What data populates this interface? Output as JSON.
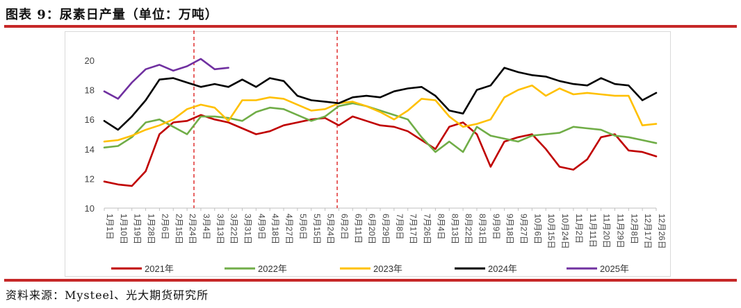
{
  "title": "图表 9：尿素日产量（单位：万吨）",
  "source": "资料来源：Mysteel、光大期货研究所",
  "chart_data": {
    "type": "line",
    "ylim": [
      10,
      20
    ],
    "yticks": [
      10,
      12,
      14,
      16,
      18,
      20
    ],
    "x_tick_labels": [
      "1月1日",
      "1月10日",
      "1月19日",
      "1月28日",
      "2月6日",
      "2月15日",
      "2月24日",
      "3月4日",
      "3月13日",
      "3月22日",
      "3月31日",
      "4月9日",
      "4月18日",
      "4月27日",
      "5月6日",
      "5月15日",
      "5月24日",
      "6月2日",
      "6月11日",
      "6月20日",
      "6月29日",
      "7月8日",
      "7月17日",
      "7月26日",
      "8月4日",
      "8月13日",
      "8月22日",
      "8月31日",
      "9月9日",
      "9月18日",
      "9月27日",
      "10月6日",
      "10月15日",
      "10月24日",
      "11月2日",
      "11月11日",
      "11月20日",
      "11月29日",
      "12月8日",
      "12月17日",
      "12月26日"
    ],
    "vlines": [
      "3月1日",
      "6月1日"
    ],
    "grid": false,
    "legend_position": "bottom",
    "series": [
      {
        "name": "2021年",
        "color": "#c00000",
        "x": [
          "1月1日",
          "1月10日",
          "1月19日",
          "1月28日",
          "2月6日",
          "2月15日",
          "2月24日",
          "3月4日",
          "3月13日",
          "3月22日",
          "3月31日",
          "4月9日",
          "4月18日",
          "4月27日",
          "5月6日",
          "5月15日",
          "5月24日",
          "6月2日",
          "6月11日",
          "6月20日",
          "6月29日",
          "7月8日",
          "7月17日",
          "7月26日",
          "8月4日",
          "8月13日",
          "8月22日",
          "8月31日",
          "9月9日",
          "9月18日",
          "9月27日",
          "10月6日",
          "10月15日",
          "10月24日",
          "11月2日",
          "11月11日",
          "11月20日",
          "11月29日",
          "12月8日",
          "12月17日",
          "12月26日"
        ],
        "values": [
          11.8,
          11.6,
          11.5,
          12.5,
          15.0,
          15.8,
          15.9,
          16.3,
          16.0,
          15.8,
          15.4,
          15.0,
          15.2,
          15.6,
          15.8,
          16.0,
          16.1,
          15.6,
          16.2,
          15.9,
          15.6,
          15.5,
          15.2,
          14.6,
          14.0,
          15.5,
          15.8,
          15.0,
          12.8,
          14.5,
          14.8,
          15.0,
          14.0,
          12.8,
          12.6,
          13.3,
          14.8,
          15.0,
          13.9,
          13.8,
          13.5
        ]
      },
      {
        "name": "2022年",
        "color": "#70ad47",
        "x": [
          "1月1日",
          "1月10日",
          "1月19日",
          "1月28日",
          "2月6日",
          "2月15日",
          "2月24日",
          "3月4日",
          "3月13日",
          "3月22日",
          "3月31日",
          "4月9日",
          "4月18日",
          "4月27日",
          "5月6日",
          "5月15日",
          "5月24日",
          "6月2日",
          "6月11日",
          "6月20日",
          "6月29日",
          "7月8日",
          "7月17日",
          "7月26日",
          "8月4日",
          "8月13日",
          "8月22日",
          "8月31日",
          "9月9日",
          "9月18日",
          "9月27日",
          "10月6日",
          "10月15日",
          "10月24日",
          "11月2日",
          "11月11日",
          "11月20日",
          "11月29日",
          "12月8日",
          "12月17日",
          "12月26日"
        ],
        "values": [
          14.1,
          14.2,
          14.8,
          15.8,
          16.0,
          15.5,
          15.0,
          16.2,
          16.2,
          16.1,
          15.9,
          16.5,
          16.8,
          16.7,
          16.3,
          15.9,
          16.2,
          16.9,
          17.1,
          16.9,
          16.6,
          16.3,
          16.0,
          14.8,
          13.8,
          14.5,
          13.8,
          15.5,
          14.9,
          14.7,
          14.5,
          14.9,
          15.0,
          15.1,
          15.5,
          15.4,
          15.3,
          14.9,
          14.8,
          14.6,
          14.4
        ]
      },
      {
        "name": "2023年",
        "color": "#ffc000",
        "x": [
          "1月1日",
          "1月10日",
          "1月19日",
          "1月28日",
          "2月6日",
          "2月15日",
          "2月24日",
          "3月4日",
          "3月13日",
          "3月22日",
          "3月31日",
          "4月9日",
          "4月18日",
          "4月27日",
          "5月6日",
          "5月15日",
          "5月24日",
          "6月2日",
          "6月11日",
          "6月20日",
          "6月29日",
          "7月8日",
          "7月17日",
          "7月26日",
          "8月4日",
          "8月13日",
          "8月22日",
          "8月31日",
          "9月9日",
          "9月18日",
          "9月27日",
          "10月6日",
          "10月15日",
          "10月24日",
          "11月2日",
          "11月11日",
          "11月20日",
          "11月29日",
          "12月8日",
          "12月17日",
          "12月26日"
        ],
        "values": [
          14.5,
          14.6,
          14.9,
          15.3,
          15.6,
          16.0,
          16.7,
          17.0,
          16.8,
          15.9,
          17.3,
          17.3,
          17.5,
          17.4,
          17.0,
          16.6,
          16.7,
          17.1,
          17.2,
          16.9,
          16.5,
          16.0,
          16.6,
          17.4,
          17.3,
          16.2,
          15.5,
          15.7,
          16.0,
          17.5,
          18.0,
          18.3,
          17.6,
          18.1,
          17.7,
          17.8,
          17.7,
          17.6,
          17.6,
          15.6,
          15.7
        ]
      },
      {
        "name": "2024年",
        "color": "#000000",
        "x": [
          "1月1日",
          "1月10日",
          "1月19日",
          "1月28日",
          "2月6日",
          "2月15日",
          "2月24日",
          "3月4日",
          "3月13日",
          "3月22日",
          "3月31日",
          "4月9日",
          "4月18日",
          "4月27日",
          "5月6日",
          "5月15日",
          "5月24日",
          "6月2日",
          "6月11日",
          "6月20日",
          "6月29日",
          "7月8日",
          "7月17日",
          "7月26日",
          "8月4日",
          "8月13日",
          "8月22日",
          "8月31日",
          "9月9日",
          "9月18日",
          "9月27日",
          "10月6日",
          "10月15日",
          "10月24日",
          "11月2日",
          "11月11日",
          "11月20日",
          "11月29日",
          "12月8日",
          "12月17日",
          "12月26日"
        ],
        "values": [
          15.9,
          15.3,
          16.2,
          17.3,
          18.7,
          18.8,
          18.5,
          18.2,
          18.4,
          18.2,
          18.7,
          18.2,
          18.8,
          18.6,
          17.6,
          17.3,
          17.2,
          17.1,
          17.5,
          17.6,
          17.5,
          17.9,
          18.1,
          18.2,
          17.6,
          16.6,
          16.4,
          18.0,
          18.3,
          19.5,
          19.2,
          19.0,
          18.9,
          18.6,
          18.4,
          18.3,
          18.8,
          18.4,
          18.3,
          17.3,
          17.8
        ]
      },
      {
        "name": "2025年",
        "color": "#7030a0",
        "x": [
          "1月1日",
          "1月10日",
          "1月19日",
          "1月28日",
          "2月6日",
          "2月15日",
          "2月24日",
          "3月4日",
          "3月13日",
          "3月22日"
        ],
        "values": [
          17.9,
          17.4,
          18.5,
          19.4,
          19.7,
          19.3,
          19.6,
          20.1,
          19.4,
          19.5
        ]
      }
    ]
  }
}
